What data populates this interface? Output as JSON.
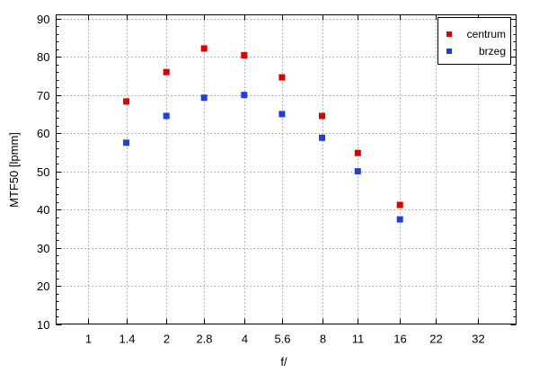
{
  "chart_data": {
    "type": "scatter",
    "title": "",
    "xlabel": "f/",
    "ylabel": "MTF50 [lpmm]",
    "x_scale": "log",
    "x_ticks": [
      1,
      1.4,
      2,
      2.8,
      4,
      5.6,
      8,
      11,
      16,
      22,
      32
    ],
    "x_tick_labels": [
      "1",
      "1.4",
      "2",
      "2.8",
      "4",
      "5.6",
      "8",
      "11",
      "16",
      "22",
      "32"
    ],
    "xlim": [
      0.75,
      45
    ],
    "ylim": [
      10,
      91
    ],
    "y_ticks": [
      10,
      20,
      30,
      40,
      50,
      60,
      70,
      80,
      90
    ],
    "y_tick_labels": [
      "10",
      "20",
      "30",
      "40",
      "50",
      "60",
      "70",
      "80",
      "90"
    ],
    "grid": true,
    "legend_position": "top-right",
    "series": [
      {
        "name": "centrum",
        "color": "#e00000",
        "x": [
          1.4,
          2,
          2.8,
          4,
          5.6,
          8,
          11,
          16
        ],
        "y": [
          68.3,
          76.0,
          82.2,
          80.4,
          74.6,
          64.5,
          54.8,
          41.2
        ]
      },
      {
        "name": "brzeg",
        "color": "#1e3fd8",
        "x": [
          1.4,
          2,
          2.8,
          4,
          5.6,
          8,
          11,
          16
        ],
        "y": [
          57.5,
          64.5,
          69.3,
          70.0,
          65.0,
          58.8,
          50.0,
          37.4
        ]
      }
    ]
  }
}
